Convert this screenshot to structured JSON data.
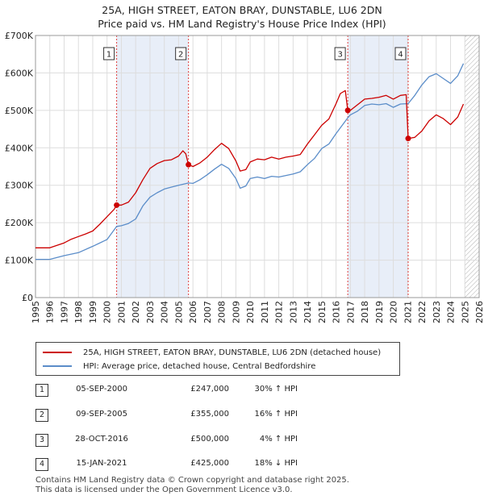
{
  "chart_data": {
    "type": "line",
    "title": "25A, HIGH STREET, EATON BRAY, DUNSTABLE, LU6 2DN",
    "subtitle": "Price paid vs. HM Land Registry's House Price Index (HPI)",
    "x_ticks": [
      "1995",
      "1996",
      "1997",
      "1998",
      "1999",
      "2000",
      "2001",
      "2002",
      "2003",
      "2004",
      "2005",
      "2006",
      "2007",
      "2008",
      "2009",
      "2010",
      "2011",
      "2012",
      "2013",
      "2014",
      "2015",
      "2016",
      "2017",
      "2018",
      "2019",
      "2020",
      "2021",
      "2022",
      "2023",
      "2024",
      "2025",
      "2026"
    ],
    "y_ticks": [
      "£0",
      "£100K",
      "£200K",
      "£300K",
      "£400K",
      "£500K",
      "£600K",
      "£700K"
    ],
    "xlim": [
      1995,
      2026
    ],
    "ylim": [
      0,
      700000
    ],
    "grid": true,
    "forecast_start": 2025.0,
    "series": [
      {
        "name": "25A, HIGH STREET, EATON BRAY, DUNSTABLE, LU6 2DN (detached house)",
        "color": "#cc0000",
        "points": [
          [
            1995.0,
            133000
          ],
          [
            1996.0,
            133000
          ],
          [
            1997.0,
            146000
          ],
          [
            1997.5,
            156000
          ],
          [
            1998.0,
            163000
          ],
          [
            1998.5,
            170000
          ],
          [
            1999.0,
            178000
          ],
          [
            1999.5,
            196000
          ],
          [
            2000.0,
            216000
          ],
          [
            2000.5,
            236000
          ],
          [
            2000.67,
            247000
          ],
          [
            2001.0,
            247000
          ],
          [
            2001.5,
            255000
          ],
          [
            2002.0,
            280000
          ],
          [
            2002.5,
            315000
          ],
          [
            2003.0,
            345000
          ],
          [
            2003.5,
            358000
          ],
          [
            2004.0,
            366000
          ],
          [
            2004.5,
            368000
          ],
          [
            2005.0,
            378000
          ],
          [
            2005.3,
            392000
          ],
          [
            2005.5,
            384000
          ],
          [
            2005.69,
            355000
          ],
          [
            2006.0,
            350000
          ],
          [
            2006.5,
            360000
          ],
          [
            2007.0,
            375000
          ],
          [
            2007.5,
            395000
          ],
          [
            2008.0,
            412000
          ],
          [
            2008.5,
            398000
          ],
          [
            2009.0,
            365000
          ],
          [
            2009.3,
            338000
          ],
          [
            2009.7,
            342000
          ],
          [
            2010.0,
            362000
          ],
          [
            2010.5,
            370000
          ],
          [
            2011.0,
            368000
          ],
          [
            2011.5,
            375000
          ],
          [
            2012.0,
            370000
          ],
          [
            2012.5,
            375000
          ],
          [
            2013.0,
            378000
          ],
          [
            2013.5,
            382000
          ],
          [
            2014.0,
            410000
          ],
          [
            2014.5,
            435000
          ],
          [
            2015.0,
            460000
          ],
          [
            2015.5,
            477000
          ],
          [
            2016.0,
            518000
          ],
          [
            2016.3,
            545000
          ],
          [
            2016.65,
            553000
          ],
          [
            2016.82,
            500000
          ],
          [
            2017.0,
            500000
          ],
          [
            2017.5,
            515000
          ],
          [
            2018.0,
            530000
          ],
          [
            2018.5,
            532000
          ],
          [
            2019.0,
            535000
          ],
          [
            2019.5,
            540000
          ],
          [
            2020.0,
            530000
          ],
          [
            2020.5,
            540000
          ],
          [
            2020.9,
            542000
          ],
          [
            2021.04,
            425000
          ],
          [
            2021.5,
            428000
          ],
          [
            2022.0,
            445000
          ],
          [
            2022.5,
            472000
          ],
          [
            2023.0,
            488000
          ],
          [
            2023.5,
            478000
          ],
          [
            2024.0,
            462000
          ],
          [
            2024.5,
            482000
          ],
          [
            2024.9,
            517000
          ]
        ]
      },
      {
        "name": "HPI: Average price, detached house, Central Bedfordshire",
        "color": "#5b8dc9",
        "points": [
          [
            1995.0,
            102000
          ],
          [
            1996.0,
            102000
          ],
          [
            1997.0,
            112000
          ],
          [
            1998.0,
            120000
          ],
          [
            1999.0,
            137000
          ],
          [
            2000.0,
            155000
          ],
          [
            2000.67,
            190000
          ],
          [
            2001.0,
            192000
          ],
          [
            2001.5,
            198000
          ],
          [
            2002.0,
            210000
          ],
          [
            2002.5,
            245000
          ],
          [
            2003.0,
            268000
          ],
          [
            2003.5,
            280000
          ],
          [
            2004.0,
            290000
          ],
          [
            2004.5,
            295000
          ],
          [
            2005.0,
            300000
          ],
          [
            2005.69,
            306000
          ],
          [
            2006.0,
            305000
          ],
          [
            2006.5,
            315000
          ],
          [
            2007.0,
            328000
          ],
          [
            2007.5,
            343000
          ],
          [
            2008.0,
            356000
          ],
          [
            2008.5,
            345000
          ],
          [
            2009.0,
            318000
          ],
          [
            2009.3,
            292000
          ],
          [
            2009.7,
            298000
          ],
          [
            2010.0,
            318000
          ],
          [
            2010.5,
            322000
          ],
          [
            2011.0,
            318000
          ],
          [
            2011.5,
            324000
          ],
          [
            2012.0,
            322000
          ],
          [
            2012.5,
            326000
          ],
          [
            2013.0,
            330000
          ],
          [
            2013.5,
            336000
          ],
          [
            2014.0,
            355000
          ],
          [
            2014.5,
            372000
          ],
          [
            2015.0,
            398000
          ],
          [
            2015.5,
            410000
          ],
          [
            2016.0,
            438000
          ],
          [
            2016.82,
            480000
          ],
          [
            2017.0,
            488000
          ],
          [
            2017.5,
            498000
          ],
          [
            2018.0,
            513000
          ],
          [
            2018.5,
            517000
          ],
          [
            2019.0,
            515000
          ],
          [
            2019.5,
            518000
          ],
          [
            2020.0,
            508000
          ],
          [
            2020.5,
            517000
          ],
          [
            2021.04,
            518000
          ],
          [
            2021.5,
            540000
          ],
          [
            2022.0,
            568000
          ],
          [
            2022.5,
            590000
          ],
          [
            2023.0,
            598000
          ],
          [
            2023.5,
            585000
          ],
          [
            2024.0,
            572000
          ],
          [
            2024.5,
            592000
          ],
          [
            2024.9,
            625000
          ]
        ]
      }
    ],
    "sales": [
      {
        "label": "1",
        "x": 2000.67,
        "value": 247000
      },
      {
        "label": "2",
        "x": 2005.69,
        "value": 355000
      },
      {
        "label": "3",
        "x": 2016.82,
        "value": 500000
      },
      {
        "label": "4",
        "x": 2021.04,
        "value": 425000
      }
    ],
    "shaded_spans": [
      [
        2000.67,
        2005.69
      ],
      [
        2016.82,
        2021.04
      ]
    ]
  },
  "legend": {
    "line1": "25A, HIGH STREET, EATON BRAY, DUNSTABLE, LU6 2DN (detached house)",
    "line2": "HPI: Average price, detached house, Central Bedfordshire"
  },
  "transactions": [
    {
      "num": "1",
      "date": "05-SEP-2000",
      "price": "£247,000",
      "hpi": "30% ↑ HPI"
    },
    {
      "num": "2",
      "date": "09-SEP-2005",
      "price": "£355,000",
      "hpi": "16% ↑ HPI"
    },
    {
      "num": "3",
      "date": "28-OCT-2016",
      "price": "£500,000",
      "hpi": "4% ↑ HPI"
    },
    {
      "num": "4",
      "date": "15-JAN-2021",
      "price": "£425,000",
      "hpi": "18% ↓ HPI"
    }
  ],
  "footer": {
    "line1": "Contains HM Land Registry data © Crown copyright and database right 2025.",
    "line2": "This data is licensed under the Open Government Licence v3.0."
  }
}
